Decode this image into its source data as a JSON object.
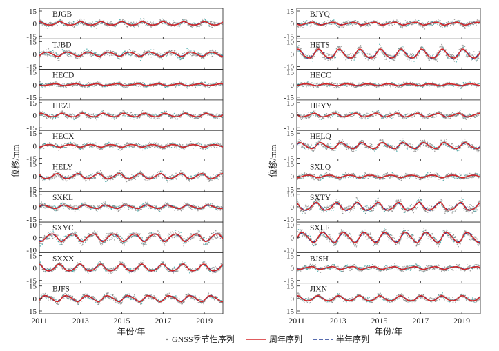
{
  "chart_data": {
    "type": "line",
    "title": "",
    "xlabel": "年份/年",
    "ylabel": "位移/mm",
    "xlim": [
      2011,
      2019.9
    ],
    "x_ticks": [
      "2011",
      "2013",
      "2015",
      "2017",
      "2019"
    ],
    "legend": {
      "position": "bottom-center",
      "entries": [
        {
          "name": "GNSS季节性序列",
          "style": "gray dots",
          "color": "#7f7f7f"
        },
        {
          "name": "周年序列",
          "style": "solid line",
          "color": "#d62728"
        },
        {
          "name": "半年序列",
          "style": "dashed line",
          "color": "#1f3a93"
        }
      ]
    },
    "colors": {
      "points": "#7f7f7f",
      "cyan_points": "#2a9d9d",
      "annual": "#d62728",
      "semiannual": "#1f3a93"
    },
    "panels": [
      {
        "station": "BJGB",
        "column": "left",
        "ylim": [
          -15,
          15
        ],
        "y_ticks": [
          "15",
          "0",
          "-15"
        ],
        "annual_amp": 2.0,
        "semi_amp": 1.0,
        "noise": 3.2
      },
      {
        "station": "TJBD",
        "column": "left",
        "ylim": [
          -15,
          15
        ],
        "y_ticks": [
          "15",
          "0",
          "-15"
        ],
        "annual_amp": 2.5,
        "semi_amp": 1.0,
        "noise": 3.5
      },
      {
        "station": "HECD",
        "column": "left",
        "ylim": [
          -15,
          15
        ],
        "y_ticks": [
          "15",
          "0",
          "-15"
        ],
        "annual_amp": 1.0,
        "semi_amp": 0.5,
        "noise": 2.5
      },
      {
        "station": "HEZJ",
        "column": "left",
        "ylim": [
          -15,
          15
        ],
        "y_ticks": [
          "15",
          "0",
          "-15"
        ],
        "annual_amp": 2.0,
        "semi_amp": 0.8,
        "noise": 3.0
      },
      {
        "station": "HECX",
        "column": "left",
        "ylim": [
          -15,
          15
        ],
        "y_ticks": [
          "15",
          "0",
          "-15"
        ],
        "annual_amp": 1.5,
        "semi_amp": 0.5,
        "noise": 3.0
      },
      {
        "station": "HELY",
        "column": "left",
        "ylim": [
          -15,
          15
        ],
        "y_ticks": [
          "15",
          "0",
          "-15"
        ],
        "annual_amp": 3.0,
        "semi_amp": 1.0,
        "noise": 3.5
      },
      {
        "station": "SXKL",
        "column": "left",
        "ylim": [
          -15,
          15
        ],
        "y_ticks": [
          "15",
          "0",
          "-15"
        ],
        "annual_amp": 2.0,
        "semi_amp": 1.0,
        "noise": 3.0
      },
      {
        "station": "SXYC",
        "column": "left",
        "ylim": [
          -10,
          10
        ],
        "y_ticks": [
          "10",
          "0",
          "-10"
        ],
        "annual_amp": 3.0,
        "semi_amp": 1.0,
        "noise": 3.0
      },
      {
        "station": "SXXX",
        "column": "left",
        "ylim": [
          -15,
          15
        ],
        "y_ticks": [
          "15",
          "0",
          "-15"
        ],
        "annual_amp": 4.0,
        "semi_amp": 1.5,
        "noise": 3.0
      },
      {
        "station": "BJFS",
        "column": "left",
        "ylim": [
          -15,
          15
        ],
        "y_ticks": [
          "15",
          "0",
          "-15"
        ],
        "annual_amp": 3.5,
        "semi_amp": 1.5,
        "noise": 3.0
      },
      {
        "station": "BJYQ",
        "column": "right",
        "ylim": [
          -15,
          15
        ],
        "y_ticks": [
          "15",
          "0",
          "-15"
        ],
        "annual_amp": 1.5,
        "semi_amp": 0.8,
        "noise": 3.0
      },
      {
        "station": "HETS",
        "column": "right",
        "ylim": [
          -10,
          10
        ],
        "y_ticks": [
          "10",
          "0",
          "-10"
        ],
        "annual_amp": 3.5,
        "semi_amp": 1.5,
        "noise": 3.0
      },
      {
        "station": "HECC",
        "column": "right",
        "ylim": [
          -15,
          15
        ],
        "y_ticks": [
          "15",
          "0",
          "-15"
        ],
        "annual_amp": 1.0,
        "semi_amp": 0.5,
        "noise": 2.5
      },
      {
        "station": "HEYY",
        "column": "right",
        "ylim": [
          -15,
          15
        ],
        "y_ticks": [
          "15",
          "0",
          "-15"
        ],
        "annual_amp": 2.0,
        "semi_amp": 1.0,
        "noise": 3.0
      },
      {
        "station": "HELQ",
        "column": "right",
        "ylim": [
          -15,
          15
        ],
        "y_ticks": [
          "15",
          "0",
          "-15"
        ],
        "annual_amp": 3.5,
        "semi_amp": 1.5,
        "noise": 3.5
      },
      {
        "station": "SXLQ",
        "column": "right",
        "ylim": [
          -15,
          15
        ],
        "y_ticks": [
          "15",
          "0",
          "-15"
        ],
        "annual_amp": 1.5,
        "semi_amp": 0.5,
        "noise": 3.0
      },
      {
        "station": "SXTY",
        "column": "right",
        "ylim": [
          -10,
          10
        ],
        "y_ticks": [
          "10",
          "0",
          "-10"
        ],
        "annual_amp": 3.0,
        "semi_amp": 1.5,
        "noise": 3.0
      },
      {
        "station": "SXLF",
        "column": "right",
        "ylim": [
          -10,
          10
        ],
        "y_ticks": [
          "10",
          "0",
          "-10"
        ],
        "annual_amp": 4.0,
        "semi_amp": 1.5,
        "noise": 3.0
      },
      {
        "station": "BJSH",
        "column": "right",
        "ylim": [
          -15,
          15
        ],
        "y_ticks": [
          "15",
          "0",
          "-15"
        ],
        "annual_amp": 1.5,
        "semi_amp": 0.8,
        "noise": 3.0
      },
      {
        "station": "JIXN",
        "column": "right",
        "ylim": [
          -15,
          15
        ],
        "y_ticks": [
          "15",
          "0",
          "-15"
        ],
        "annual_amp": 3.0,
        "semi_amp": 1.0,
        "noise": 3.0
      }
    ]
  }
}
